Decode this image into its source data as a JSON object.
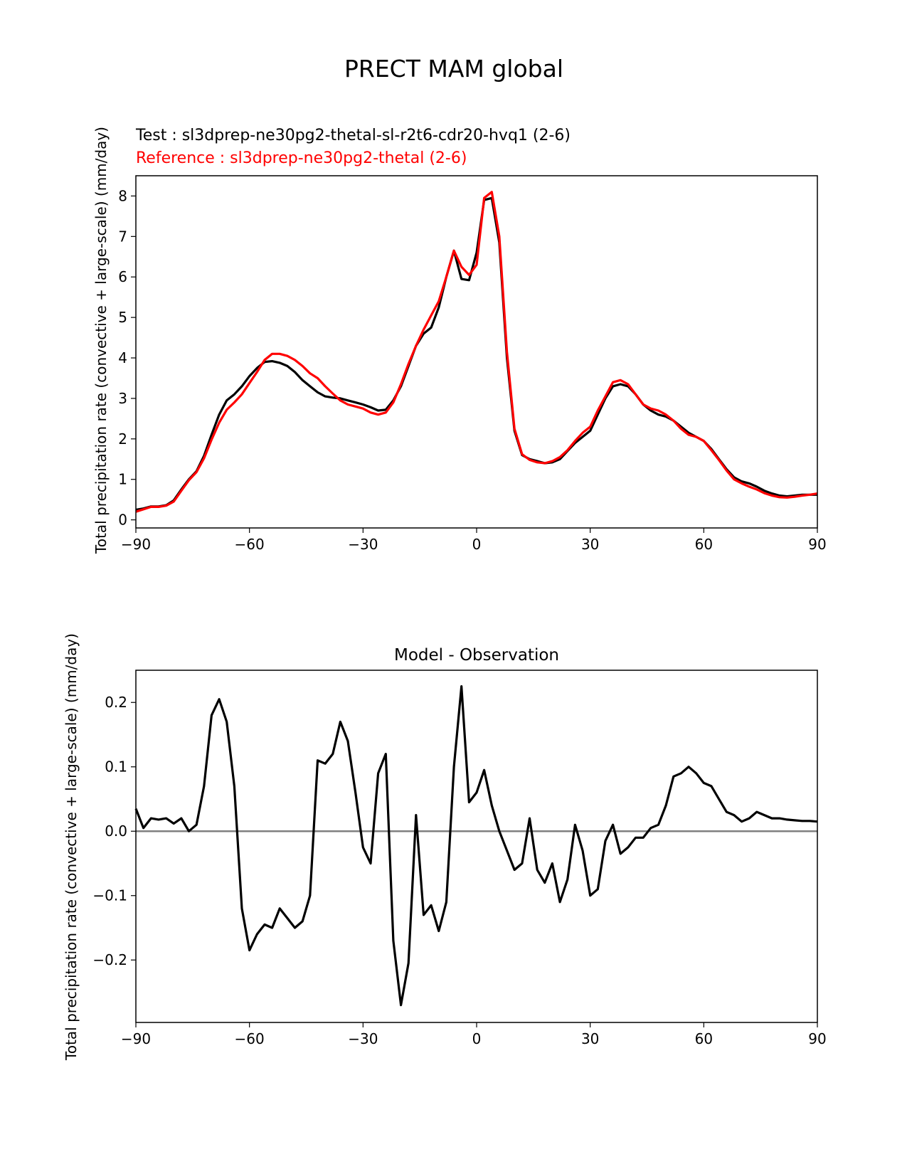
{
  "figure": {
    "title": "PRECT MAM global"
  },
  "chart_data": [
    {
      "type": "line",
      "legend_position": "top-left",
      "test_label": "Test : sl3dprep-ne30pg2-thetal-sl-r2t6-cdr20-hvq1 (2-6)",
      "reference_label": "Reference : sl3dprep-ne30pg2-thetal (2-6)",
      "xlabel": "",
      "ylabel": "Total precipitation rate (convective + large-scale) (mm/day)",
      "xlim": [
        -90,
        90
      ],
      "ylim": [
        -0.2,
        8.5
      ],
      "xticks": [
        -90,
        -60,
        -30,
        0,
        30,
        60,
        90
      ],
      "xtick_labels": [
        "−90",
        "−60",
        "−30",
        "0",
        "30",
        "60",
        "90"
      ],
      "yticks": [
        0,
        1,
        2,
        3,
        4,
        5,
        6,
        7,
        8
      ],
      "ytick_labels": [
        "0",
        "1",
        "2",
        "3",
        "4",
        "5",
        "6",
        "7",
        "8"
      ],
      "series": [
        {
          "name": "Test",
          "color": "#000000",
          "x": [
            -90,
            -88,
            -86,
            -84,
            -82,
            -80,
            -78,
            -76,
            -74,
            -72,
            -70,
            -68,
            -66,
            -64,
            -62,
            -60,
            -58,
            -56,
            -54,
            -52,
            -50,
            -48,
            -46,
            -44,
            -42,
            -40,
            -38,
            -36,
            -34,
            -32,
            -30,
            -28,
            -26,
            -24,
            -22,
            -20,
            -18,
            -16,
            -14,
            -12,
            -10,
            -8,
            -6,
            -4,
            -2,
            0,
            2,
            4,
            6,
            8,
            10,
            12,
            14,
            16,
            18,
            20,
            22,
            24,
            26,
            28,
            30,
            32,
            34,
            36,
            38,
            40,
            42,
            44,
            46,
            48,
            50,
            52,
            54,
            56,
            58,
            60,
            62,
            64,
            66,
            68,
            70,
            72,
            74,
            76,
            78,
            80,
            82,
            84,
            86,
            88,
            90
          ],
          "values": [
            0.25,
            0.28,
            0.33,
            0.33,
            0.36,
            0.48,
            0.75,
            1.0,
            1.2,
            1.58,
            2.1,
            2.6,
            2.95,
            3.1,
            3.3,
            3.55,
            3.75,
            3.9,
            3.92,
            3.88,
            3.8,
            3.65,
            3.45,
            3.3,
            3.15,
            3.05,
            3.02,
            3.0,
            2.95,
            2.9,
            2.85,
            2.78,
            2.7,
            2.72,
            2.95,
            3.3,
            3.8,
            4.3,
            4.6,
            4.75,
            5.25,
            6.0,
            6.65,
            5.95,
            5.92,
            6.6,
            7.9,
            7.95,
            6.85,
            4.0,
            2.2,
            1.6,
            1.5,
            1.45,
            1.4,
            1.42,
            1.5,
            1.7,
            1.9,
            2.05,
            2.2,
            2.6,
            3.0,
            3.3,
            3.35,
            3.3,
            3.1,
            2.85,
            2.7,
            2.6,
            2.55,
            2.45,
            2.3,
            2.15,
            2.05,
            1.95,
            1.75,
            1.5,
            1.25,
            1.05,
            0.95,
            0.9,
            0.82,
            0.72,
            0.65,
            0.6,
            0.58,
            0.6,
            0.62,
            0.62,
            0.62
          ]
        },
        {
          "name": "Reference",
          "color": "#ff0000",
          "x": [
            -90,
            -88,
            -86,
            -84,
            -82,
            -80,
            -78,
            -76,
            -74,
            -72,
            -70,
            -68,
            -66,
            -64,
            -62,
            -60,
            -58,
            -56,
            -54,
            -52,
            -50,
            -48,
            -46,
            -44,
            -42,
            -40,
            -38,
            -36,
            -34,
            -32,
            -30,
            -28,
            -26,
            -24,
            -22,
            -20,
            -18,
            -16,
            -14,
            -12,
            -10,
            -8,
            -6,
            -4,
            -2,
            0,
            2,
            4,
            6,
            8,
            10,
            12,
            14,
            16,
            18,
            20,
            22,
            24,
            26,
            28,
            30,
            32,
            34,
            36,
            38,
            40,
            42,
            44,
            46,
            48,
            50,
            52,
            54,
            56,
            58,
            60,
            62,
            64,
            66,
            68,
            70,
            72,
            74,
            76,
            78,
            80,
            82,
            84,
            86,
            88,
            90
          ],
          "values": [
            0.2,
            0.26,
            0.32,
            0.32,
            0.35,
            0.45,
            0.72,
            0.98,
            1.18,
            1.52,
            1.98,
            2.4,
            2.72,
            2.9,
            3.1,
            3.38,
            3.65,
            3.95,
            4.1,
            4.1,
            4.05,
            3.95,
            3.8,
            3.62,
            3.5,
            3.3,
            3.12,
            2.95,
            2.85,
            2.8,
            2.75,
            2.65,
            2.6,
            2.65,
            2.9,
            3.35,
            3.85,
            4.3,
            4.7,
            5.05,
            5.4,
            6.0,
            6.65,
            6.25,
            6.05,
            6.3,
            7.95,
            8.1,
            7.0,
            4.15,
            2.25,
            1.62,
            1.48,
            1.42,
            1.4,
            1.45,
            1.55,
            1.72,
            1.95,
            2.15,
            2.3,
            2.7,
            3.05,
            3.4,
            3.45,
            3.35,
            3.1,
            2.85,
            2.75,
            2.7,
            2.6,
            2.45,
            2.25,
            2.1,
            2.05,
            1.95,
            1.72,
            1.48,
            1.22,
            1.0,
            0.9,
            0.82,
            0.75,
            0.66,
            0.6,
            0.56,
            0.55,
            0.57,
            0.6,
            0.62,
            0.65
          ]
        }
      ]
    },
    {
      "type": "line",
      "title": "Model - Observation",
      "xlabel": "",
      "ylabel": "Total precipitation rate (convective + large-scale) (mm/day)",
      "xlim": [
        -90,
        90
      ],
      "ylim": [
        -0.297,
        0.25
      ],
      "xticks": [
        -90,
        -60,
        -30,
        0,
        30,
        60,
        90
      ],
      "xtick_labels": [
        "−90",
        "−60",
        "−30",
        "0",
        "30",
        "60",
        "90"
      ],
      "yticks": [
        -0.2,
        -0.1,
        0.0,
        0.1,
        0.2
      ],
      "ytick_labels": [
        "−0.2",
        "−0.1",
        "0.0",
        "0.1",
        "0.2"
      ],
      "zero_line_color": "#808080",
      "series": [
        {
          "name": "Model - Observation",
          "color": "#000000",
          "x": [
            -90,
            -88,
            -86,
            -84,
            -82,
            -80,
            -78,
            -76,
            -74,
            -72,
            -70,
            -68,
            -66,
            -64,
            -62,
            -60,
            -58,
            -56,
            -54,
            -52,
            -50,
            -48,
            -46,
            -44,
            -42,
            -40,
            -38,
            -36,
            -34,
            -32,
            -30,
            -28,
            -26,
            -24,
            -22,
            -20,
            -18,
            -16,
            -14,
            -12,
            -10,
            -8,
            -6,
            -4,
            -2,
            0,
            2,
            4,
            6,
            8,
            10,
            12,
            14,
            16,
            18,
            20,
            22,
            24,
            26,
            28,
            30,
            32,
            34,
            36,
            38,
            40,
            42,
            44,
            46,
            48,
            50,
            52,
            54,
            56,
            58,
            60,
            62,
            64,
            66,
            68,
            70,
            72,
            74,
            76,
            78,
            80,
            82,
            84,
            86,
            88,
            90
          ],
          "values": [
            0.035,
            0.005,
            0.02,
            0.018,
            0.02,
            0.012,
            0.02,
            0.0,
            0.01,
            0.07,
            0.18,
            0.205,
            0.17,
            0.07,
            -0.12,
            -0.185,
            -0.16,
            -0.145,
            -0.15,
            -0.12,
            -0.135,
            -0.15,
            -0.14,
            -0.1,
            0.11,
            0.105,
            0.12,
            0.17,
            0.14,
            0.06,
            -0.025,
            -0.05,
            0.09,
            0.12,
            -0.17,
            -0.27,
            -0.205,
            0.025,
            -0.13,
            -0.115,
            -0.155,
            -0.11,
            0.1,
            0.225,
            0.045,
            0.06,
            0.095,
            0.04,
            0.0,
            -0.03,
            -0.06,
            -0.05,
            0.02,
            -0.06,
            -0.08,
            -0.05,
            -0.11,
            -0.075,
            0.01,
            -0.03,
            -0.1,
            -0.09,
            -0.015,
            0.01,
            -0.035,
            -0.025,
            -0.01,
            -0.01,
            0.005,
            0.01,
            0.04,
            0.085,
            0.09,
            0.1,
            0.09,
            0.075,
            0.07,
            0.05,
            0.03,
            0.025,
            0.015,
            0.02,
            0.03,
            0.025,
            0.02,
            0.02,
            0.018,
            0.017,
            0.016,
            0.016,
            0.015
          ]
        }
      ]
    }
  ]
}
